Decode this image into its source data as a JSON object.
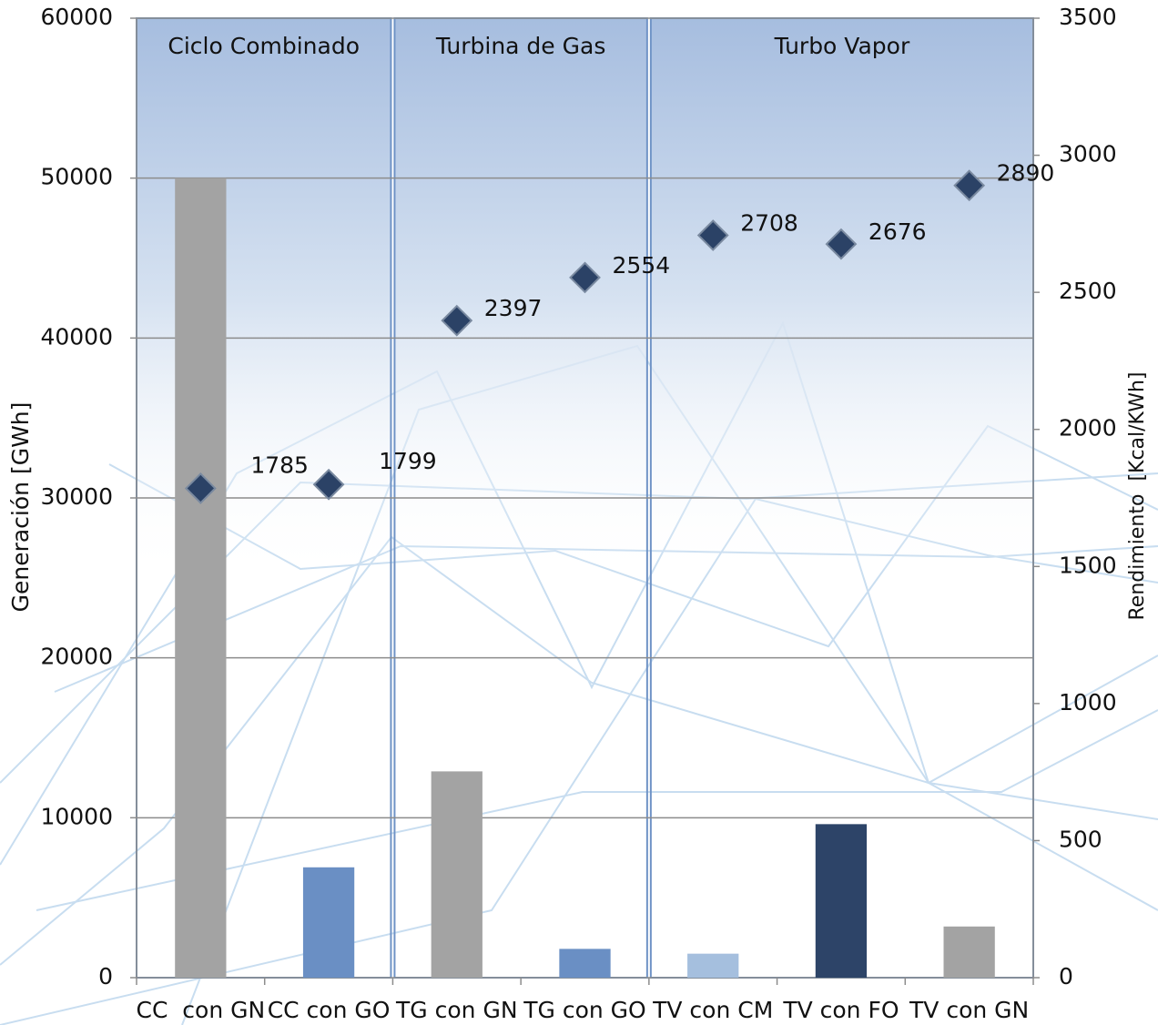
{
  "chart_data": {
    "type": "bar",
    "categories": [
      "CC  con GN",
      "CC con GO",
      "TG con GN",
      "TG con GO",
      "TV con CM",
      "TV con FO",
      "TV con GN"
    ],
    "groups": [
      {
        "label": "Ciclo Combinado",
        "size": 2
      },
      {
        "label": "Turbina de Gas",
        "size": 2
      },
      {
        "label": "Turbo Vapor",
        "size": 3
      }
    ],
    "series": [
      {
        "type": "bar",
        "values": [
          50000,
          6900,
          12900,
          1800,
          1500,
          9600,
          3200
        ],
        "colors": [
          "#a3a3a3",
          "#6a8fc4",
          "#a3a3a3",
          "#6a8fc4",
          "#a5bfde",
          "#2d4468",
          "#a3a3a3"
        ]
      },
      {
        "type": "scatter",
        "axis": "y2",
        "values": [
          1785,
          1799,
          2397,
          2554,
          2708,
          2676,
          2890
        ],
        "color": "#2b4266"
      }
    ],
    "ylabel": "Generación [GWh]",
    "y2label": "Rendimiento  [Kcal/KWh]",
    "ylim": [
      0,
      60000
    ],
    "yticks": [
      0,
      10000,
      20000,
      30000,
      40000,
      50000,
      60000
    ],
    "y2lim": [
      0,
      3500
    ],
    "y2ticks": [
      0,
      500,
      1000,
      1500,
      2000,
      2500,
      3000,
      3500
    ],
    "grid": true
  }
}
